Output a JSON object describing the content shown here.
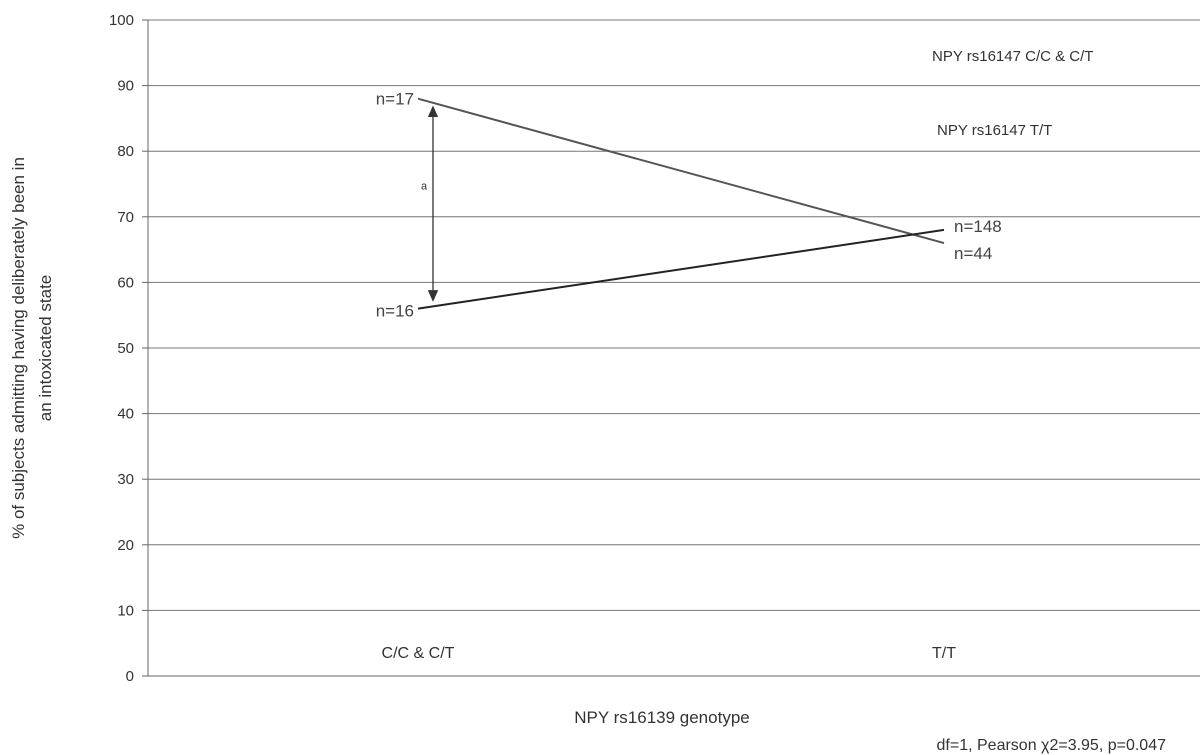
{
  "chart_data": {
    "type": "line",
    "categories": [
      "C/C & C/T",
      "T/T"
    ],
    "series": [
      {
        "name": "NPY rs16147 C/C & C/T",
        "values": [
          88,
          66
        ],
        "n": [
          "n=17",
          "n=44"
        ],
        "color": "#555555"
      },
      {
        "name": "NPY rs16147 T/T",
        "values": [
          56,
          68
        ],
        "n": [
          "n=16",
          "n=148"
        ],
        "color": "#222222"
      }
    ],
    "title": "",
    "xlabel": "NPY rs16139 genotype",
    "ylabel_line1": "% of subjects admitting having deliberately been in",
    "ylabel_line2": "an intoxicated state",
    "ylim": [
      0,
      100
    ],
    "yticks": [
      0,
      10,
      20,
      30,
      40,
      50,
      60,
      70,
      80,
      90,
      100
    ],
    "grid": true,
    "legend_position": "top-right",
    "annotation": "a",
    "stat_note": "df=1, Pearson χ2=3.95, p=0.047"
  }
}
